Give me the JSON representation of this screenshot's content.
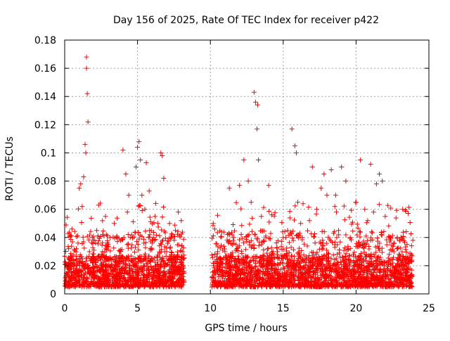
{
  "chart_data": {
    "type": "scatter",
    "title": "Day 156 of 2025, Rate Of TEC Index for receiver p422",
    "xlabel": "GPS time / hours",
    "ylabel": "ROTI / TECUs",
    "xlim": [
      0,
      25
    ],
    "ylim": [
      0,
      0.18
    ],
    "xticks": [
      0,
      5,
      10,
      15,
      20,
      25
    ],
    "xtick_labels": [
      "0",
      "5",
      "10",
      "15",
      "20",
      "25"
    ],
    "yticks": [
      0,
      0.02,
      0.04,
      0.06,
      0.08,
      0.1,
      0.12,
      0.14,
      0.16,
      0.18
    ],
    "ytick_labels": [
      "0",
      "0.02",
      "0.04",
      "0.06",
      "0.08",
      "0.1",
      "0.12",
      "0.14",
      "0.16",
      "0.18"
    ],
    "grid": true,
    "marker": "+",
    "color": "#ff0000",
    "data_gap_hours": [
      8.2,
      10.1
    ],
    "series": [
      {
        "name": "ROTI",
        "x": [
          0.1,
          0.3,
          0.5,
          0.6,
          0.8,
          1.0,
          1.1,
          1.2,
          1.3,
          1.4,
          1.45,
          1.5,
          1.5,
          1.55,
          1.6,
          1.7,
          1.8,
          1.9,
          2.0,
          2.2,
          2.4,
          2.6,
          2.8,
          3.0,
          3.2,
          3.4,
          3.6,
          3.8,
          4.0,
          4.2,
          4.3,
          4.4,
          4.5,
          4.7,
          4.9,
          5.0,
          5.1,
          5.2,
          5.3,
          5.5,
          5.6,
          5.8,
          6.0,
          6.2,
          6.4,
          6.6,
          6.7,
          6.8,
          7.0,
          7.2,
          7.4,
          7.6,
          7.8,
          8.0,
          8.1,
          10.2,
          10.3,
          10.5,
          10.7,
          11.0,
          11.3,
          11.6,
          12.0,
          12.3,
          12.6,
          12.8,
          13.0,
          13.1,
          13.2,
          13.25,
          13.3,
          13.5,
          13.8,
          14.0,
          14.3,
          14.6,
          15.0,
          15.3,
          15.6,
          15.8,
          15.9,
          16.0,
          16.2,
          16.5,
          16.8,
          17.0,
          17.3,
          17.6,
          17.8,
          18.0,
          18.3,
          18.6,
          18.8,
          19.0,
          19.3,
          19.6,
          20.0,
          20.3,
          20.6,
          20.8,
          21.0,
          21.2,
          21.4,
          21.6,
          21.8,
          22.0,
          22.3,
          22.6,
          23.0,
          23.2,
          23.5,
          23.8,
          23.9
        ],
        "y": [
          0.012,
          0.025,
          0.046,
          0.018,
          0.032,
          0.075,
          0.078,
          0.062,
          0.083,
          0.106,
          0.1,
          0.168,
          0.16,
          0.142,
          0.122,
          0.03,
          0.025,
          0.04,
          0.038,
          0.045,
          0.016,
          0.03,
          0.055,
          0.035,
          0.02,
          0.05,
          0.04,
          0.03,
          0.102,
          0.085,
          0.058,
          0.07,
          0.04,
          0.025,
          0.09,
          0.104,
          0.108,
          0.095,
          0.07,
          0.06,
          0.093,
          0.073,
          0.036,
          0.055,
          0.05,
          0.1,
          0.098,
          0.082,
          0.03,
          0.05,
          0.025,
          0.045,
          0.058,
          0.052,
          0.03,
          0.05,
          0.046,
          0.03,
          0.02,
          0.03,
          0.075,
          0.04,
          0.077,
          0.095,
          0.08,
          0.065,
          0.143,
          0.136,
          0.117,
          0.134,
          0.095,
          0.055,
          0.04,
          0.077,
          0.03,
          0.03,
          0.04,
          0.045,
          0.117,
          0.105,
          0.1,
          0.065,
          0.05,
          0.025,
          0.052,
          0.09,
          0.06,
          0.075,
          0.085,
          0.07,
          0.088,
          0.07,
          0.045,
          0.09,
          0.08,
          0.04,
          0.065,
          0.095,
          0.06,
          0.052,
          0.092,
          0.058,
          0.078,
          0.085,
          0.08,
          0.055,
          0.04,
          0.03,
          0.025,
          0.06,
          0.035,
          0.028,
          0.038
        ]
      }
    ]
  }
}
